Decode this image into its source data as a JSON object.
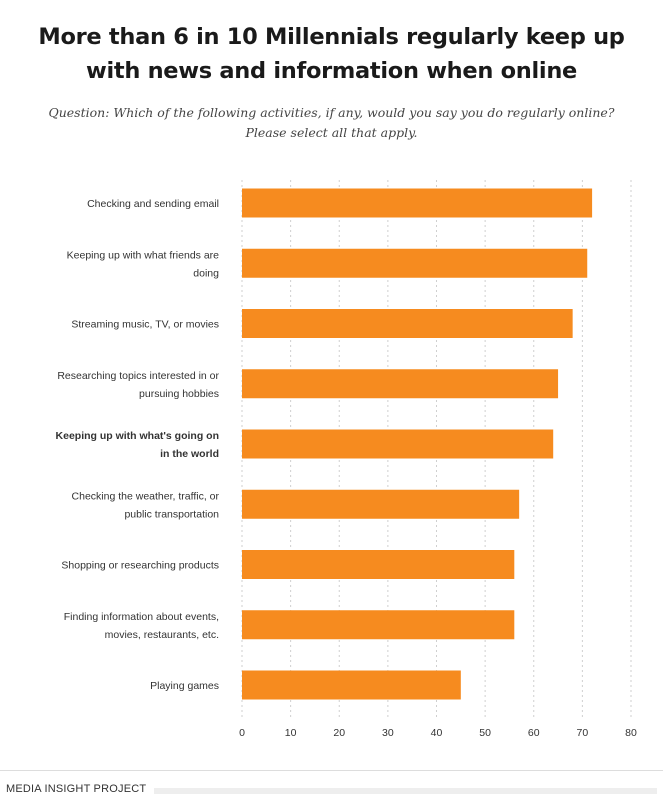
{
  "title": "More than 6 in 10 Millennials regularly keep up with news and information when online",
  "subtitle": "Question: Which of the following activities, if any, would you say you do regularly online? Please select all that apply.",
  "footer": "MEDIA INSIGHT PROJECT",
  "colors": {
    "bar": "#f68b1f",
    "grid": "#cfcfcf"
  },
  "chart_data": {
    "type": "bar",
    "orientation": "horizontal",
    "categories": [
      [
        "Checking and sending email"
      ],
      [
        "Keeping up with what friends are",
        "doing"
      ],
      [
        "Streaming music, TV, or movies"
      ],
      [
        "Researching topics interested in or",
        "pursuing hobbies"
      ],
      [
        "Keeping up with what's going on",
        "in the world"
      ],
      [
        "Checking the weather, traffic, or",
        "public transportation"
      ],
      [
        "Shopping or researching products"
      ],
      [
        "Finding information about events,",
        "movies, restaurants, etc."
      ],
      [
        "Playing games"
      ]
    ],
    "highlight_index": 4,
    "values": [
      72,
      71,
      68,
      65,
      64,
      57,
      56,
      56,
      45
    ],
    "xlim": [
      0,
      80
    ],
    "xticks": [
      0,
      10,
      20,
      30,
      40,
      50,
      60,
      70,
      80
    ],
    "grid": "vertical-dotted",
    "title": "More than 6 in 10 Millennials regularly keep up with news and information when online",
    "xlabel": "",
    "ylabel": ""
  }
}
